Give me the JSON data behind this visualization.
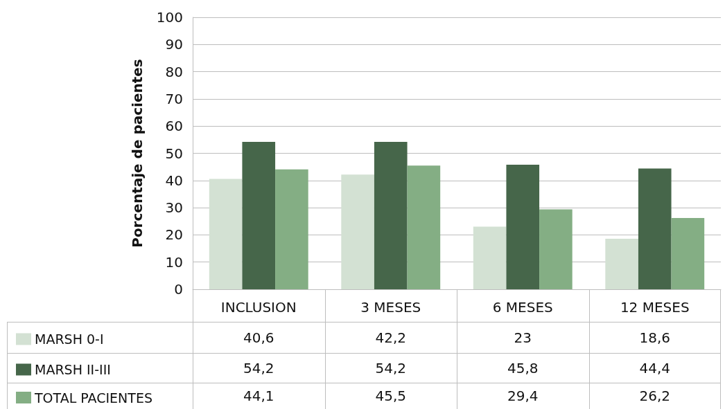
{
  "chart_data": {
    "type": "bar",
    "ylabel": "Porcentaje de pacientes",
    "categories": [
      "INCLUSION",
      "3 MESES",
      "6 MESES",
      "12 MESES"
    ],
    "series": [
      {
        "name": "MARSH 0-I",
        "color": "#d3e1d3",
        "values": [
          40.6,
          42.2,
          23,
          18.6
        ],
        "value_labels": [
          "40,6",
          "42,2",
          "23",
          "18,6"
        ]
      },
      {
        "name": "MARSH II-III",
        "color": "#46664a",
        "values": [
          54.2,
          54.2,
          45.8,
          44.4
        ],
        "value_labels": [
          "54,2",
          "54,2",
          "45,8",
          "44,4"
        ]
      },
      {
        "name": "TOTAL PACIENTES",
        "color": "#84ae84",
        "values": [
          44.1,
          45.5,
          29.4,
          26.2
        ],
        "value_labels": [
          "44,1",
          "45,5",
          "29,4",
          "26,2"
        ]
      }
    ],
    "ylim": [
      0,
      100
    ],
    "yticks": [
      0,
      10,
      20,
      30,
      40,
      50,
      60,
      70,
      80,
      90,
      100
    ],
    "grid": "y",
    "legend": "bottom left"
  }
}
